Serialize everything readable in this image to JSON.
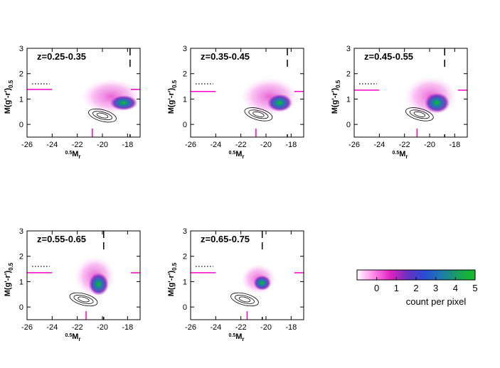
{
  "chart_data": [
    {
      "type": "heatmap",
      "label": "z=0.25-0.35",
      "xlabel_sup": "0.5",
      "xlabel_main": "M",
      "xlabel_sub": "r",
      "ylabel": "M(g'-r')",
      "ylabel_sub": "0.5",
      "xlim": [
        -26,
        -17
      ],
      "ylim": [
        -0.5,
        3
      ],
      "xticks": [
        "-26",
        "-24",
        "-22",
        "-20",
        "-18"
      ],
      "yticks": [
        "0",
        "1",
        "2",
        "3"
      ],
      "blob": {
        "cx": -18.3,
        "cy": 0.85,
        "rx": 1.1,
        "ry": 0.3,
        "cloud": {
          "cx": -19.3,
          "cy": 1.1,
          "rx": 2.4,
          "ry": 0.7
        }
      },
      "contour": {
        "cx": -20.0,
        "cy": 0.35
      },
      "dotted_y": 1.6,
      "dotted_x": [
        -25.6,
        -24.2
      ],
      "mag_hline": 1.38,
      "vcut_x": -20.8,
      "dash_x": -17.8
    },
    {
      "type": "heatmap",
      "label": "z=0.35-0.45",
      "xlabel_sup": "0.5",
      "xlabel_main": "M",
      "xlabel_sub": "r",
      "ylabel": "M(g'-r')",
      "ylabel_sub": "0.5",
      "xlim": [
        -26,
        -17
      ],
      "ylim": [
        -0.5,
        3
      ],
      "xticks": [
        "-26",
        "-24",
        "-22",
        "-20",
        "-18"
      ],
      "yticks": [
        "0",
        "1",
        "2",
        "3"
      ],
      "blob": {
        "cx": -18.9,
        "cy": 0.85,
        "rx": 1.0,
        "ry": 0.35,
        "cloud": {
          "cx": -19.7,
          "cy": 1.1,
          "rx": 2.3,
          "ry": 0.75
        }
      },
      "contour": {
        "cx": -20.6,
        "cy": 0.4
      },
      "dotted_y": 1.6,
      "dotted_x": [
        -25.6,
        -24.2
      ],
      "mag_hline": 1.3,
      "vcut_x": -20.8,
      "dash_x": -18.3
    },
    {
      "type": "heatmap",
      "label": "z=0.45-0.55",
      "xlabel_sup": "0.5",
      "xlabel_main": "M",
      "xlabel_sub": "r",
      "ylabel": "M(g'-r')",
      "ylabel_sub": "0.5",
      "xlim": [
        -26,
        -17
      ],
      "ylim": [
        -0.5,
        3
      ],
      "xticks": [
        "-26",
        "-24",
        "-22",
        "-20",
        "-18"
      ],
      "yticks": [
        "0",
        "1",
        "2",
        "3"
      ],
      "blob": {
        "cx": -19.4,
        "cy": 0.85,
        "rx": 1.0,
        "ry": 0.4,
        "cloud": {
          "cx": -19.9,
          "cy": 1.1,
          "rx": 2.1,
          "ry": 0.8
        }
      },
      "contour": {
        "cx": -20.8,
        "cy": 0.4
      },
      "dotted_y": 1.6,
      "dotted_x": [
        -25.6,
        -24.2
      ],
      "mag_hline": 1.35,
      "vcut_x": -21.0,
      "dash_x": -18.8
    },
    {
      "type": "heatmap",
      "label": "z=0.55-0.65",
      "xlabel_sup": "0.5",
      "xlabel_main": "M",
      "xlabel_sub": "r",
      "ylabel": "M(g'-r')",
      "ylabel_sub": "0.5",
      "xlim": [
        -26,
        -17
      ],
      "ylim": [
        -0.5,
        3
      ],
      "xticks": [
        "-26",
        "-24",
        "-22",
        "-20",
        "-18"
      ],
      "yticks": [
        "0",
        "1",
        "2",
        "3"
      ],
      "blob": {
        "cx": -20.3,
        "cy": 0.9,
        "rx": 0.8,
        "ry": 0.45,
        "cloud": {
          "cx": -20.6,
          "cy": 1.2,
          "rx": 1.6,
          "ry": 0.8
        }
      },
      "contour": {
        "cx": -21.5,
        "cy": 0.3
      },
      "dotted_y": 1.6,
      "dotted_x": [
        -25.6,
        -24.2
      ],
      "mag_hline": 1.35,
      "vcut_x": -21.3,
      "dash_x": -19.9
    },
    {
      "type": "heatmap",
      "label": "z=0.65-0.75",
      "xlabel_sup": "0.5",
      "xlabel_main": "M",
      "xlabel_sub": "r",
      "ylabel": "M(g'-r')",
      "ylabel_sub": "0.5",
      "xlim": [
        -26,
        -17
      ],
      "ylim": [
        -0.5,
        3
      ],
      "xticks": [
        "-26",
        "-24",
        "-22",
        "-20",
        "-18"
      ],
      "yticks": [
        "0",
        "1",
        "2",
        "3"
      ],
      "blob": {
        "cx": -20.3,
        "cy": 0.95,
        "rx": 0.7,
        "ry": 0.3,
        "cloud": {
          "cx": -20.6,
          "cy": 1.1,
          "rx": 1.4,
          "ry": 0.6
        }
      },
      "contour": {
        "cx": -21.7,
        "cy": 0.3
      },
      "dotted_y": 1.6,
      "dotted_x": [
        -25.6,
        -24.2
      ],
      "mag_hline": 1.35,
      "vcut_x": -21.5,
      "dash_x": -20.3
    }
  ],
  "colorbar": {
    "ticks": [
      "0",
      "1",
      "2",
      "3",
      "4",
      "5"
    ],
    "range": [
      -1,
      5
    ],
    "label": "count per pixel",
    "colors": [
      "#ffffff",
      "#ff88e8",
      "#e020c0",
      "#6a30c0",
      "#2a4ad8",
      "#1d7ab0",
      "#1aa060",
      "#10c020"
    ]
  },
  "colors": {
    "magenta": "#ff00c8",
    "axis": "#000000"
  }
}
